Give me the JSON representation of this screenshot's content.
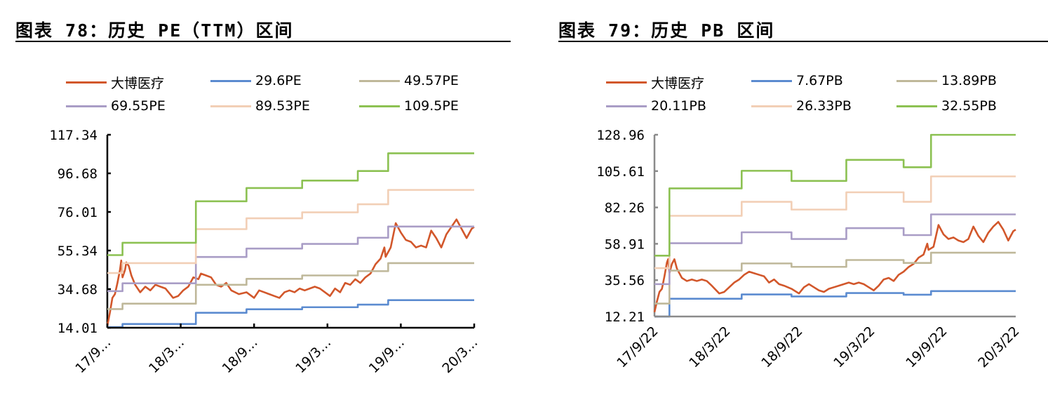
{
  "chart_data": [
    {
      "type": "line",
      "title": "图表 78：历史 PE（TTM）区间",
      "xlabel": "",
      "ylabel": "",
      "ylim": [
        14.01,
        117.34
      ],
      "y_ticks": [
        "117.34",
        "96.68",
        "76.01",
        "55.34",
        "34.68",
        "14.01"
      ],
      "x_ticks": [
        "17/9…",
        "18/3…",
        "18/9…",
        "19/3…",
        "19/9…",
        "20/3…"
      ],
      "x_range": [
        "2017-09-22",
        "2020-03-22"
      ],
      "legend_position": "top",
      "grid": false,
      "series": [
        {
          "name": "大博医疗",
          "color": "#D2572B",
          "values": [
            [
              0,
              15
            ],
            [
              0.01,
              22
            ],
            [
              0.02,
              30
            ],
            [
              0.03,
              32
            ],
            [
              0.04,
              38
            ],
            [
              0.05,
              45
            ],
            [
              0.055,
              50
            ],
            [
              0.06,
              41
            ],
            [
              0.07,
              45
            ],
            [
              0.075,
              49
            ],
            [
              0.085,
              47
            ],
            [
              0.095,
              42
            ],
            [
              0.11,
              37
            ],
            [
              0.13,
              33
            ],
            [
              0.15,
              36
            ],
            [
              0.17,
              34
            ],
            [
              0.19,
              37
            ],
            [
              0.21,
              36
            ],
            [
              0.23,
              35
            ],
            [
              0.26,
              30
            ],
            [
              0.28,
              31
            ],
            [
              0.3,
              34
            ],
            [
              0.32,
              36
            ],
            [
              0.34,
              41
            ],
            [
              0.36,
              40
            ],
            [
              0.37,
              43
            ],
            [
              0.39,
              42
            ],
            [
              0.41,
              41
            ],
            [
              0.43,
              37
            ],
            [
              0.45,
              36
            ],
            [
              0.47,
              38
            ],
            [
              0.49,
              34
            ],
            [
              0.52,
              32
            ],
            [
              0.55,
              33
            ],
            [
              0.58,
              30
            ],
            [
              0.6,
              34
            ],
            [
              0.62,
              33
            ],
            [
              0.64,
              32
            ],
            [
              0.66,
              31
            ],
            [
              0.68,
              30
            ],
            [
              0.7,
              33
            ],
            [
              0.72,
              34
            ],
            [
              0.74,
              33
            ],
            [
              0.76,
              35
            ],
            [
              0.78,
              34
            ],
            [
              0.8,
              35
            ],
            [
              0.82,
              36
            ],
            [
              0.84,
              35
            ],
            [
              0.86,
              33
            ],
            [
              0.88,
              31
            ],
            [
              0.9,
              35
            ],
            [
              0.92,
              33
            ],
            [
              0.94,
              38
            ],
            [
              0.96,
              37
            ],
            [
              0.98,
              40
            ],
            [
              1.0,
              38
            ],
            [
              1.02,
              41
            ],
            [
              1.04,
              43
            ],
            [
              1.06,
              48
            ],
            [
              1.08,
              51
            ],
            [
              1.095,
              57
            ],
            [
              1.1,
              52
            ],
            [
              1.12,
              57
            ],
            [
              1.14,
              70
            ],
            [
              1.16,
              65
            ],
            [
              1.18,
              61
            ],
            [
              1.2,
              60
            ],
            [
              1.22,
              57
            ],
            [
              1.24,
              58
            ],
            [
              1.26,
              57
            ],
            [
              1.28,
              66
            ],
            [
              1.3,
              62
            ],
            [
              1.32,
              57
            ],
            [
              1.34,
              64
            ],
            [
              1.36,
              68
            ],
            [
              1.38,
              72
            ],
            [
              1.4,
              67
            ],
            [
              1.42,
              62
            ],
            [
              1.44,
              67
            ],
            [
              1.45,
              68
            ]
          ]
        },
        {
          "name": "29.6PE",
          "color": "#5B8BD0",
          "steps": [
            [
              0,
              14.3
            ],
            [
              0.06,
              16.0
            ],
            [
              0.35,
              22.0
            ],
            [
              0.55,
              23.9
            ],
            [
              0.77,
              25.0
            ],
            [
              0.99,
              26.4
            ],
            [
              1.11,
              28.8
            ],
            [
              1.45,
              28.8
            ]
          ]
        },
        {
          "name": "49.57PE",
          "color": "#BFB89A",
          "steps": [
            [
              0,
              24.0
            ],
            [
              0.06,
              26.9
            ],
            [
              0.35,
              37.0
            ],
            [
              0.55,
              40.2
            ],
            [
              0.77,
              42.0
            ],
            [
              0.99,
              44.3
            ],
            [
              1.11,
              48.6
            ],
            [
              1.45,
              48.6
            ]
          ]
        },
        {
          "name": "69.55PE",
          "color": "#A99DC6",
          "steps": [
            [
              0,
              33.6
            ],
            [
              0.06,
              37.8
            ],
            [
              0.35,
              51.9
            ],
            [
              0.55,
              56.4
            ],
            [
              0.77,
              58.9
            ],
            [
              0.99,
              62.2
            ],
            [
              1.11,
              68.2
            ],
            [
              1.45,
              68.2
            ]
          ]
        },
        {
          "name": "89.53PE",
          "color": "#F2CFB6",
          "steps": [
            [
              0,
              43.3
            ],
            [
              0.06,
              48.6
            ],
            [
              0.35,
              66.8
            ],
            [
              0.55,
              72.6
            ],
            [
              0.77,
              75.8
            ],
            [
              0.99,
              80.1
            ],
            [
              1.11,
              87.8
            ],
            [
              1.45,
              87.8
            ]
          ]
        },
        {
          "name": "109.5PE",
          "color": "#8CC152",
          "steps": [
            [
              0,
              52.9
            ],
            [
              0.06,
              59.5
            ],
            [
              0.35,
              81.7
            ],
            [
              0.55,
              88.8
            ],
            [
              0.77,
              92.8
            ],
            [
              0.99,
              97.9
            ],
            [
              1.11,
              107.4
            ],
            [
              1.45,
              107.4
            ]
          ]
        }
      ]
    },
    {
      "type": "line",
      "title": "图表 79：历史 PB 区间",
      "xlabel": "",
      "ylabel": "",
      "ylim": [
        12.21,
        128.96
      ],
      "y_ticks": [
        "128.96",
        "105.61",
        "82.26",
        "58.91",
        "35.56",
        "12.21"
      ],
      "x_ticks": [
        "17/9/22",
        "18/3/22",
        "18/9/22",
        "19/3/22",
        "19/9/22",
        "20/3/22"
      ],
      "x_range": [
        "2017-09-22",
        "2020-03-22"
      ],
      "legend_position": "top",
      "grid": false,
      "series": [
        {
          "name": "大博医疗",
          "color": "#D2572B",
          "values": [
            [
              0,
              15
            ],
            [
              0.01,
              22
            ],
            [
              0.02,
              28
            ],
            [
              0.03,
              30
            ],
            [
              0.04,
              38
            ],
            [
              0.05,
              47
            ],
            [
              0.055,
              49
            ],
            [
              0.06,
              40
            ],
            [
              0.07,
              46
            ],
            [
              0.08,
              49
            ],
            [
              0.09,
              43
            ],
            [
              0.11,
              37
            ],
            [
              0.13,
              35
            ],
            [
              0.15,
              36
            ],
            [
              0.17,
              35
            ],
            [
              0.19,
              36
            ],
            [
              0.21,
              35
            ],
            [
              0.23,
              32
            ],
            [
              0.26,
              27
            ],
            [
              0.28,
              28
            ],
            [
              0.3,
              31
            ],
            [
              0.32,
              34
            ],
            [
              0.34,
              36
            ],
            [
              0.36,
              39
            ],
            [
              0.38,
              41
            ],
            [
              0.4,
              40
            ],
            [
              0.42,
              39
            ],
            [
              0.44,
              38
            ],
            [
              0.46,
              34
            ],
            [
              0.48,
              36
            ],
            [
              0.5,
              33
            ],
            [
              0.52,
              32
            ],
            [
              0.55,
              30
            ],
            [
              0.58,
              27
            ],
            [
              0.6,
              31
            ],
            [
              0.62,
              33
            ],
            [
              0.64,
              31
            ],
            [
              0.66,
              29
            ],
            [
              0.68,
              28
            ],
            [
              0.7,
              30
            ],
            [
              0.72,
              31
            ],
            [
              0.74,
              32
            ],
            [
              0.76,
              33
            ],
            [
              0.78,
              34
            ],
            [
              0.8,
              33
            ],
            [
              0.82,
              34
            ],
            [
              0.84,
              33
            ],
            [
              0.86,
              31
            ],
            [
              0.88,
              29
            ],
            [
              0.9,
              32
            ],
            [
              0.92,
              36
            ],
            [
              0.94,
              37
            ],
            [
              0.96,
              35
            ],
            [
              0.98,
              39
            ],
            [
              1.0,
              41
            ],
            [
              1.02,
              44
            ],
            [
              1.04,
              46
            ],
            [
              1.06,
              50
            ],
            [
              1.08,
              52
            ],
            [
              1.095,
              59
            ],
            [
              1.1,
              55
            ],
            [
              1.12,
              57
            ],
            [
              1.14,
              71
            ],
            [
              1.16,
              65
            ],
            [
              1.18,
              62
            ],
            [
              1.2,
              63
            ],
            [
              1.22,
              61
            ],
            [
              1.24,
              60
            ],
            [
              1.26,
              62
            ],
            [
              1.28,
              70
            ],
            [
              1.3,
              64
            ],
            [
              1.32,
              60
            ],
            [
              1.34,
              66
            ],
            [
              1.36,
              70
            ],
            [
              1.38,
              73
            ],
            [
              1.4,
              68
            ],
            [
              1.42,
              61
            ],
            [
              1.44,
              67
            ],
            [
              1.45,
              68
            ]
          ]
        },
        {
          "name": "7.67PB",
          "color": "#5B8BD0",
          "steps": [
            [
              0,
              12.2
            ],
            [
              0.06,
              23.6
            ],
            [
              0.35,
              26.4
            ],
            [
              0.55,
              25.1
            ],
            [
              0.77,
              27.3
            ],
            [
              1.0,
              26.2
            ],
            [
              1.11,
              28.5
            ],
            [
              1.45,
              28.5
            ]
          ]
        },
        {
          "name": "13.89PB",
          "color": "#BFB89A",
          "steps": [
            [
              0,
              20.5
            ],
            [
              0.06,
              41.7
            ],
            [
              0.35,
              46.3
            ],
            [
              0.55,
              44.1
            ],
            [
              0.77,
              48.5
            ],
            [
              1.0,
              46.6
            ],
            [
              1.11,
              53.2
            ],
            [
              1.45,
              53.2
            ]
          ]
        },
        {
          "name": "20.11PB",
          "color": "#A99DC6",
          "steps": [
            [
              0,
              33.0
            ],
            [
              0.06,
              59.3
            ],
            [
              0.35,
              66.3
            ],
            [
              0.55,
              62.0
            ],
            [
              0.77,
              69.0
            ],
            [
              1.0,
              64.5
            ],
            [
              1.11,
              77.8
            ],
            [
              1.45,
              77.8
            ]
          ]
        },
        {
          "name": "26.33PB",
          "color": "#F2CFB6",
          "steps": [
            [
              0,
              43.3
            ],
            [
              0.06,
              76.9
            ],
            [
              0.35,
              85.9
            ],
            [
              0.55,
              80.9
            ],
            [
              0.77,
              92.0
            ],
            [
              1.0,
              85.9
            ],
            [
              1.11,
              102.2
            ],
            [
              1.45,
              102.2
            ]
          ]
        },
        {
          "name": "32.55PB",
          "color": "#8CC152",
          "steps": [
            [
              0,
              51.3
            ],
            [
              0.06,
              94.5
            ],
            [
              0.35,
              105.8
            ],
            [
              0.55,
              99.3
            ],
            [
              0.77,
              112.8
            ],
            [
              1.0,
              108.1
            ],
            [
              1.11,
              128.9
            ],
            [
              1.45,
              128.9
            ]
          ]
        }
      ]
    }
  ],
  "left": {
    "title": "图表 78：历史 PE（TTM）区间",
    "legend": [
      "大博医疗",
      "29.6PE",
      "49.57PE",
      "69.55PE",
      "89.53PE",
      "109.5PE"
    ]
  },
  "right": {
    "title": "图表 79：历史 PB 区间",
    "legend": [
      "大博医疗",
      "7.67PB",
      "13.89PB",
      "20.11PB",
      "26.33PB",
      "32.55PB"
    ]
  }
}
